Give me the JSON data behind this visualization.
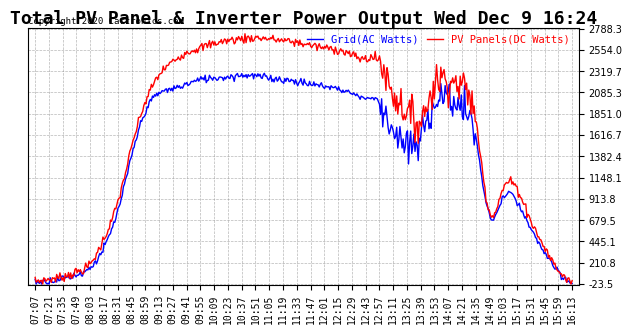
{
  "title": "Total PV Panel & Inverter Power Output Wed Dec 9 16:24",
  "copyright": "Copyright 2020 Cartronics.com",
  "legend_grid": "Grid(AC Watts)",
  "legend_pv": "PV Panels(DC Watts)",
  "grid_color": "blue",
  "pv_color": "red",
  "background_color": "#ffffff",
  "grid_line_color": "#888888",
  "ymin": -23.5,
  "ymax": 2788.3,
  "yticks": [
    2788.3,
    2554.0,
    2319.7,
    2085.3,
    1851.0,
    1616.7,
    1382.4,
    1148.1,
    913.8,
    679.5,
    445.1,
    210.8,
    -23.5
  ],
  "x_labels": [
    "07:07",
    "07:21",
    "07:35",
    "07:49",
    "08:03",
    "08:17",
    "08:31",
    "08:45",
    "08:59",
    "09:13",
    "09:27",
    "09:41",
    "09:55",
    "10:09",
    "10:23",
    "10:37",
    "10:51",
    "11:05",
    "11:19",
    "11:33",
    "11:47",
    "12:01",
    "12:15",
    "12:29",
    "12:43",
    "12:57",
    "13:11",
    "13:25",
    "13:39",
    "13:53",
    "14:07",
    "14:21",
    "14:35",
    "14:49",
    "15:03",
    "15:17",
    "15:31",
    "15:45",
    "15:59",
    "16:13"
  ],
  "title_fontsize": 13,
  "tick_fontsize": 7,
  "line_width": 1.0
}
